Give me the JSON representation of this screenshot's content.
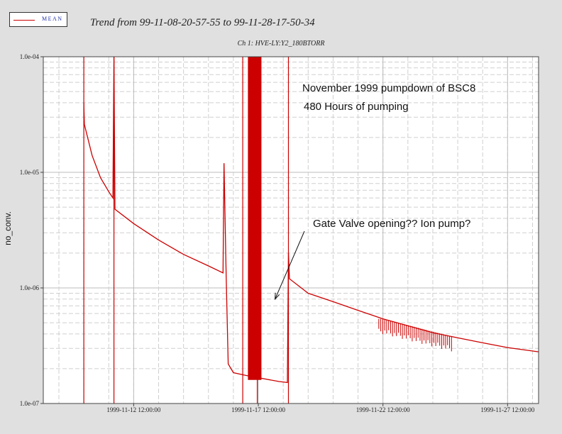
{
  "legend": {
    "label": "MEAN",
    "color": "#cc0000"
  },
  "chart_data": {
    "type": "line",
    "title": "Trend from 99-11-08-20-57-55 to 99-11-28-17-50-34",
    "subtitle": "Ch 1: HVE-LY:Y2_180BTORR",
    "ylabel": "no_conv.",
    "xlabel": "",
    "x_range": [
      "1999-11-08 20:57:55",
      "1999-11-28 17:50:34"
    ],
    "ylim": [
      1e-07,
      0.0001
    ],
    "yscale": "log",
    "grid": true,
    "y_tick_labels": [
      "1.0e-07",
      "1.0e-06",
      "1.0e-05",
      "1.0e-04"
    ],
    "x_tick_labels": [
      "1999-11-12 12:00:00",
      "1999-11-17 12:00:00",
      "1999-11-22 12:00:00",
      "1999-11-27 12:00:00"
    ],
    "series": [
      {
        "name": "MEAN",
        "color": "#cc0000",
        "points": [
          [
            "1999-11-10 12:00:00",
            4e-05
          ],
          [
            "1999-11-10 12:30:00",
            2.6e-05
          ],
          [
            "1999-11-10 20:00:00",
            1.4e-05
          ],
          [
            "1999-11-11 04:00:00",
            9e-06
          ],
          [
            "1999-11-11 12:00:00",
            6.8e-06
          ],
          [
            "1999-11-11 16:00:00",
            6e-06
          ],
          [
            "1999-11-11 17:00:00",
            0.0001
          ],
          [
            "1999-11-11 18:00:00",
            4.8e-06
          ],
          [
            "1999-11-12 12:00:00",
            3.6e-06
          ],
          [
            "1999-11-13 12:00:00",
            2.6e-06
          ],
          [
            "1999-11-14 12:00:00",
            1.95e-06
          ],
          [
            "1999-11-15 12:00:00",
            1.55e-06
          ],
          [
            "1999-11-16 02:00:00",
            1.35e-06
          ],
          [
            "1999-11-16 03:00:00",
            1.2e-05
          ],
          [
            "1999-11-16 05:00:00",
            1.3e-06
          ],
          [
            "1999-11-16 07:00:00",
            2.2e-07
          ],
          [
            "1999-11-16 12:00:00",
            1.85e-07
          ],
          [
            "1999-11-17 00:00:00",
            1.75e-07
          ],
          [
            "1999-11-18 08:00:00",
            1.55e-07
          ],
          [
            "1999-11-18 16:00:00",
            1.52e-07
          ],
          [
            "1999-11-18 17:00:00",
            2e-06
          ],
          [
            "1999-11-18 18:00:00",
            1.2e-06
          ],
          [
            "1999-11-19 12:00:00",
            9e-07
          ],
          [
            "1999-11-20 12:00:00",
            7.6e-07
          ],
          [
            "1999-11-21 12:00:00",
            6.4e-07
          ],
          [
            "1999-11-22 12:00:00",
            5.4e-07
          ],
          [
            "1999-11-23 12:00:00",
            4.7e-07
          ],
          [
            "1999-11-24 12:00:00",
            4.1e-07
          ],
          [
            "1999-11-25 12:00:00",
            3.7e-07
          ],
          [
            "1999-11-26 12:00:00",
            3.35e-07
          ],
          [
            "1999-11-27 12:00:00",
            3.05e-07
          ],
          [
            "1999-11-28 17:50:34",
            2.8e-07
          ]
        ]
      }
    ],
    "annotations": [
      {
        "text": "November 1999 pumpdown of BSC8"
      },
      {
        "text": "480 Hours of pumping"
      },
      {
        "text": "Gate Valve opening?? Ion pump?",
        "arrow_to": [
          "1999-11-18 00:00:00",
          8e-07
        ]
      }
    ]
  }
}
